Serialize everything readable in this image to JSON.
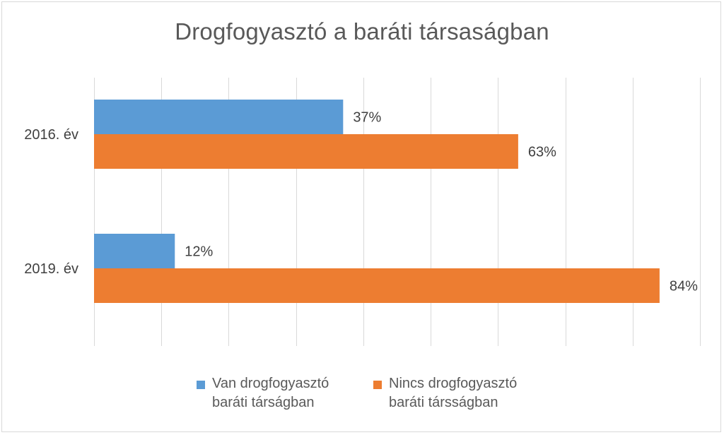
{
  "chart_data": {
    "type": "bar",
    "orientation": "horizontal",
    "title": "Drogfogyasztó a baráti társaságban",
    "categories": [
      "2016. év",
      "2019. év"
    ],
    "series": [
      {
        "name": "Van drogfogyasztó\nbaráti társágban",
        "values": [
          37,
          12
        ],
        "labels": [
          "37%",
          "12%"
        ],
        "color": "#5B9BD5"
      },
      {
        "name": "Nincs drogfogyasztó\nbaráti társságban",
        "values": [
          63,
          84
        ],
        "labels": [
          "63%",
          "84%"
        ],
        "color": "#ED7D31"
      }
    ],
    "xlim": [
      0,
      90
    ],
    "grid": true,
    "legend_position": "bottom"
  }
}
